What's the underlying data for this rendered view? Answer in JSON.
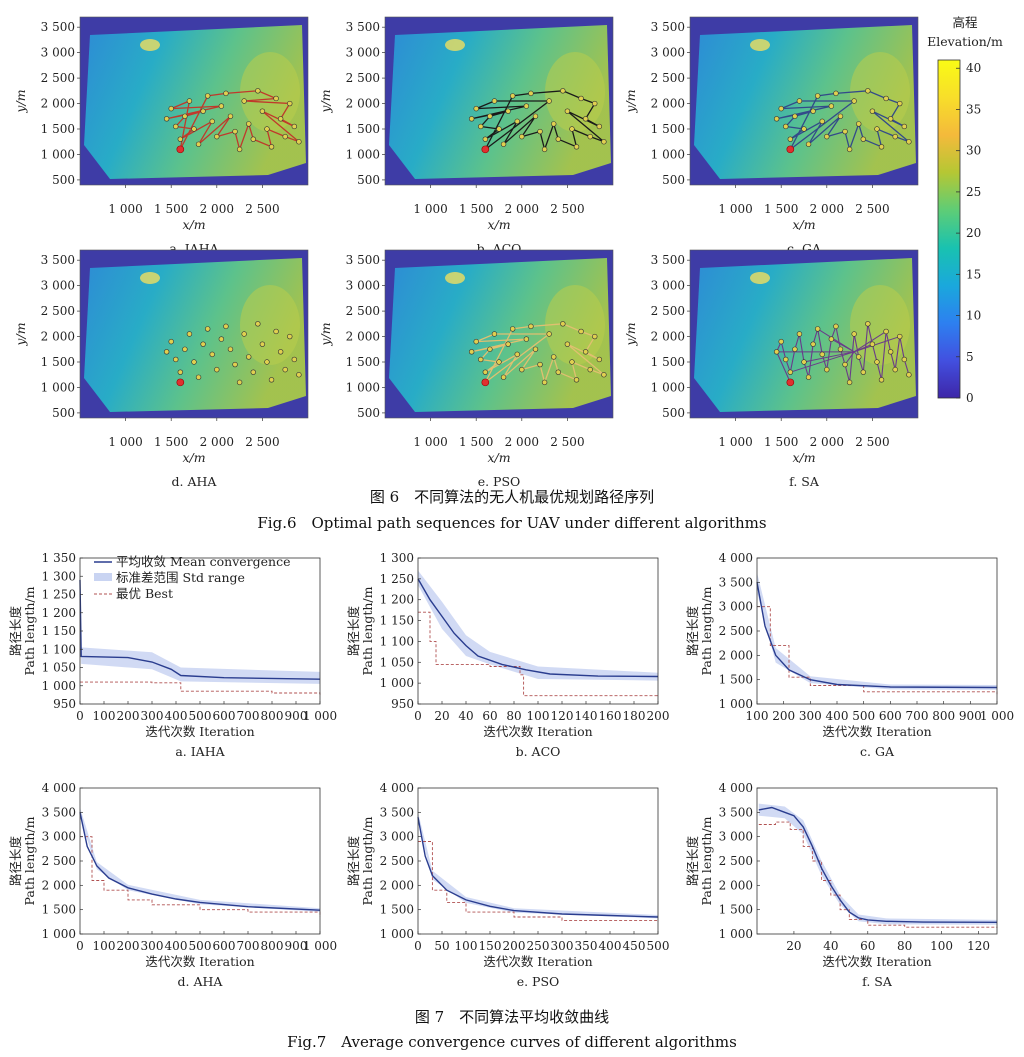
{
  "colorbar": {
    "title": "高程",
    "subtitle": "Elevation/m",
    "ticks": [
      0,
      5,
      10,
      15,
      20,
      25,
      30,
      35,
      40
    ],
    "min": 0,
    "max": 41,
    "colors": [
      "#3e26a8",
      "#4250e0",
      "#2d80f0",
      "#1aa8dc",
      "#19c2b0",
      "#5ecd76",
      "#b5c734",
      "#f4ba3b",
      "#f8de2a",
      "#f9fb15"
    ]
  },
  "fig6": {
    "caption_cn": "图 6　不同算法的无人机最优规划路径序列",
    "caption_en": "Fig.6　Optimal path sequences for UAV under different algorithms",
    "x_ticks": [
      "1 000",
      "1 500",
      "2 000",
      "2 500"
    ],
    "x_tick_values": [
      1000,
      1500,
      2000,
      2500
    ],
    "y_ticks": [
      "3 500",
      "3 000",
      "2 500",
      "2 000",
      "1 500",
      "1 000",
      "500"
    ],
    "y_tick_values": [
      3500,
      3000,
      2500,
      2000,
      1500,
      1000,
      500
    ],
    "xlim": [
      500,
      3000
    ],
    "ylim": [
      400,
      3700
    ],
    "xlabel": "x/m",
    "ylabel": "y/m",
    "start_point": [
      1600,
      1100
    ],
    "panels": [
      {
        "label": "a. IAHA",
        "path_color": "#c0392b",
        "style": "tour"
      },
      {
        "label": "b. ACO",
        "path_color": "#1a1a1a",
        "style": "tour"
      },
      {
        "label": "c. GA",
        "path_color": "#334a8a",
        "style": "tour"
      },
      {
        "label": "d. AHA",
        "path_color": "#d6d04a",
        "style": "points"
      },
      {
        "label": "e. PSO",
        "path_color": "#e0c070",
        "style": "tour"
      },
      {
        "label": "f. SA",
        "path_color": "#6a3a8a",
        "style": "star"
      }
    ],
    "waypoints": [
      [
        1450,
        1700
      ],
      [
        1500,
        1900
      ],
      [
        1550,
        1550
      ],
      [
        1600,
        1300
      ],
      [
        1650,
        1750
      ],
      [
        1700,
        2050
      ],
      [
        1750,
        1500
      ],
      [
        1800,
        1200
      ],
      [
        1850,
        1850
      ],
      [
        1900,
        2150
      ],
      [
        1950,
        1650
      ],
      [
        2000,
        1350
      ],
      [
        2050,
        1950
      ],
      [
        2100,
        2200
      ],
      [
        2150,
        1750
      ],
      [
        2200,
        1450
      ],
      [
        2250,
        1100
      ],
      [
        2300,
        2050
      ],
      [
        2350,
        1600
      ],
      [
        2400,
        1300
      ],
      [
        2450,
        2250
      ],
      [
        2500,
        1850
      ],
      [
        2550,
        1500
      ],
      [
        2600,
        1150
      ],
      [
        2650,
        2100
      ],
      [
        2700,
        1700
      ],
      [
        2750,
        1350
      ],
      [
        2800,
        2000
      ],
      [
        2850,
        1550
      ],
      [
        2900,
        1250
      ]
    ]
  },
  "fig7": {
    "caption_cn": "图 7　不同算法平均收敛曲线",
    "caption_en": "Fig.7　Average convergence curves of different algorithms",
    "xlabel": "迭代次数 Iteration",
    "ylabel_cn": "路径长度",
    "ylabel_en": "Path length/m",
    "legend": {
      "mean": "平均收敛 Mean convergence",
      "std": "标准差范围 Std range",
      "best": "最优 Best"
    },
    "colors": {
      "mean": "#2a3d8f",
      "std": "#c9d4f2",
      "best": "#b05050"
    }
  },
  "chart_data": [
    {
      "type": "line",
      "title": "a. IAHA",
      "xlim": [
        0,
        1000
      ],
      "ylim": [
        950,
        1350
      ],
      "x_ticks": [
        0,
        100,
        200,
        300,
        400,
        500,
        600,
        700,
        800,
        900,
        1000
      ],
      "x_tick_labels": [
        "0",
        "100",
        "200",
        "300",
        "400",
        "500",
        "600",
        "700",
        "800",
        "900",
        "1 000"
      ],
      "y_ticks": [
        950,
        1000,
        1050,
        1100,
        1150,
        1200,
        1250,
        1300,
        1350
      ],
      "y_tick_labels": [
        "950",
        "1 000",
        "1 050",
        "1 100",
        "1 150",
        "1 200",
        "1 250",
        "1 300",
        "1 350"
      ],
      "mean": [
        [
          0,
          1290
        ],
        [
          5,
          1080
        ],
        [
          200,
          1077
        ],
        [
          300,
          1065
        ],
        [
          380,
          1045
        ],
        [
          420,
          1028
        ],
        [
          600,
          1022
        ],
        [
          1000,
          1018
        ]
      ],
      "std": [
        [
          0,
          1250,
          1330
        ],
        [
          5,
          1060,
          1105
        ],
        [
          300,
          1045,
          1092
        ],
        [
          420,
          1012,
          1050
        ],
        [
          1000,
          1005,
          1038
        ]
      ],
      "best": [
        [
          0,
          1010
        ],
        [
          300,
          1008
        ],
        [
          420,
          985
        ],
        [
          800,
          980
        ],
        [
          1000,
          975
        ]
      ]
    },
    {
      "type": "line",
      "title": "b. ACO",
      "xlim": [
        0,
        200
      ],
      "ylim": [
        950,
        1300
      ],
      "x_ticks": [
        0,
        20,
        40,
        60,
        80,
        100,
        120,
        140,
        160,
        180,
        200
      ],
      "x_tick_labels": [
        "0",
        "20",
        "40",
        "60",
        "80",
        "100",
        "120",
        "140",
        "160",
        "180",
        "200"
      ],
      "y_ticks": [
        950,
        1000,
        1050,
        1100,
        1150,
        1200,
        1250,
        1300
      ],
      "y_tick_labels": [
        "950",
        "1 000",
        "1 050",
        "1 100",
        "1 150",
        "1 200",
        "1 250",
        "1 300"
      ],
      "mean": [
        [
          0,
          1250
        ],
        [
          10,
          1200
        ],
        [
          20,
          1160
        ],
        [
          30,
          1120
        ],
        [
          40,
          1090
        ],
        [
          50,
          1065
        ],
        [
          70,
          1045
        ],
        [
          90,
          1032
        ],
        [
          110,
          1022
        ],
        [
          150,
          1017
        ],
        [
          200,
          1016
        ]
      ],
      "std": [
        [
          0,
          1235,
          1270
        ],
        [
          20,
          1130,
          1195
        ],
        [
          40,
          1065,
          1115
        ],
        [
          60,
          1045,
          1075
        ],
        [
          100,
          1010,
          1040
        ],
        [
          200,
          1006,
          1025
        ]
      ],
      "best": [
        [
          0,
          1170
        ],
        [
          10,
          1100
        ],
        [
          15,
          1045
        ],
        [
          60,
          1040
        ],
        [
          85,
          1020
        ],
        [
          88,
          970
        ],
        [
          200,
          970
        ]
      ]
    },
    {
      "type": "line",
      "title": "c. GA",
      "xlim": [
        100,
        1000
      ],
      "ylim": [
        1000,
        4000
      ],
      "x_ticks": [
        100,
        200,
        300,
        400,
        500,
        600,
        700,
        800,
        900,
        1000
      ],
      "x_tick_labels": [
        "100",
        "200",
        "300",
        "400",
        "500",
        "600",
        "700",
        "800",
        "900",
        "1 000"
      ],
      "y_ticks": [
        1000,
        1500,
        2000,
        2500,
        3000,
        3500,
        4000
      ],
      "y_tick_labels": [
        "1 000",
        "1 500",
        "2 000",
        "2 500",
        "3 000",
        "3 500",
        "4 000"
      ],
      "mean": [
        [
          100,
          3500
        ],
        [
          130,
          2600
        ],
        [
          170,
          2000
        ],
        [
          220,
          1700
        ],
        [
          300,
          1500
        ],
        [
          400,
          1400
        ],
        [
          600,
          1350
        ],
        [
          1000,
          1340
        ]
      ],
      "std": [
        [
          100,
          3300,
          3700
        ],
        [
          170,
          1850,
          2150
        ],
        [
          300,
          1430,
          1570
        ],
        [
          600,
          1300,
          1400
        ],
        [
          1000,
          1290,
          1390
        ]
      ],
      "best": [
        [
          100,
          3000
        ],
        [
          150,
          2200
        ],
        [
          220,
          1550
        ],
        [
          300,
          1380
        ],
        [
          500,
          1250
        ],
        [
          1000,
          1200
        ]
      ]
    },
    {
      "type": "line",
      "title": "d. AHA",
      "xlim": [
        0,
        1000
      ],
      "ylim": [
        1000,
        4000
      ],
      "x_ticks": [
        0,
        100,
        200,
        300,
        400,
        500,
        600,
        700,
        800,
        900,
        1000
      ],
      "x_tick_labels": [
        "0",
        "100",
        "200",
        "300",
        "400",
        "500",
        "600",
        "700",
        "800",
        "900",
        "1 000"
      ],
      "y_ticks": [
        1000,
        1500,
        2000,
        2500,
        3000,
        3500,
        4000
      ],
      "y_tick_labels": [
        "1 000",
        "1 500",
        "2 000",
        "2 500",
        "3 000",
        "3 500",
        "4 000"
      ],
      "mean": [
        [
          0,
          3500
        ],
        [
          30,
          2800
        ],
        [
          70,
          2400
        ],
        [
          120,
          2150
        ],
        [
          200,
          1950
        ],
        [
          300,
          1820
        ],
        [
          400,
          1720
        ],
        [
          500,
          1650
        ],
        [
          700,
          1560
        ],
        [
          1000,
          1490
        ]
      ],
      "std": [
        [
          0,
          3400,
          3600
        ],
        [
          70,
          2330,
          2480
        ],
        [
          200,
          1900,
          2010
        ],
        [
          500,
          1610,
          1700
        ],
        [
          1000,
          1455,
          1530
        ]
      ],
      "best": [
        [
          0,
          3000
        ],
        [
          50,
          2100
        ],
        [
          100,
          1900
        ],
        [
          200,
          1700
        ],
        [
          300,
          1600
        ],
        [
          500,
          1500
        ],
        [
          700,
          1450
        ],
        [
          1000,
          1350
        ]
      ]
    },
    {
      "type": "line",
      "title": "e. PSO",
      "xlim": [
        0,
        500
      ],
      "ylim": [
        1000,
        4000
      ],
      "x_ticks": [
        0,
        50,
        100,
        150,
        200,
        250,
        300,
        350,
        400,
        450,
        500
      ],
      "x_tick_labels": [
        "0",
        "50",
        "100",
        "150",
        "200",
        "250",
        "300",
        "350",
        "400",
        "450",
        "500"
      ],
      "y_ticks": [
        1000,
        1500,
        2000,
        2500,
        3000,
        3500,
        4000
      ],
      "y_tick_labels": [
        "1 000",
        "1 500",
        "2 000",
        "2 500",
        "3 000",
        "3 500",
        "4 000"
      ],
      "mean": [
        [
          0,
          3400
        ],
        [
          15,
          2600
        ],
        [
          30,
          2200
        ],
        [
          60,
          1900
        ],
        [
          100,
          1700
        ],
        [
          150,
          1570
        ],
        [
          200,
          1480
        ],
        [
          300,
          1410
        ],
        [
          400,
          1380
        ],
        [
          500,
          1350
        ]
      ],
      "std": [
        [
          0,
          3300,
          3500
        ],
        [
          30,
          2120,
          2300
        ],
        [
          100,
          1640,
          1760
        ],
        [
          200,
          1440,
          1530
        ],
        [
          500,
          1320,
          1390
        ]
      ],
      "best": [
        [
          0,
          2900
        ],
        [
          30,
          1900
        ],
        [
          60,
          1650
        ],
        [
          100,
          1450
        ],
        [
          200,
          1350
        ],
        [
          300,
          1280
        ],
        [
          500,
          1250
        ]
      ]
    },
    {
      "type": "line",
      "title": "f. SA",
      "xlim": [
        0,
        130
      ],
      "ylim": [
        1000,
        4000
      ],
      "x_ticks": [
        20,
        40,
        60,
        80,
        100,
        120
      ],
      "x_tick_labels": [
        "20",
        "40",
        "60",
        "80",
        "100",
        "120"
      ],
      "y_ticks": [
        1000,
        1500,
        2000,
        2500,
        3000,
        3500,
        4000
      ],
      "y_tick_labels": [
        "1 000",
        "1 500",
        "2 000",
        "2 500",
        "3 000",
        "3 500",
        "4 000"
      ],
      "mean": [
        [
          1,
          3550
        ],
        [
          8,
          3600
        ],
        [
          15,
          3500
        ],
        [
          20,
          3430
        ],
        [
          25,
          3200
        ],
        [
          30,
          2800
        ],
        [
          35,
          2350
        ],
        [
          40,
          2000
        ],
        [
          45,
          1700
        ],
        [
          50,
          1450
        ],
        [
          55,
          1330
        ],
        [
          60,
          1290
        ],
        [
          70,
          1260
        ],
        [
          90,
          1245
        ],
        [
          130,
          1240
        ]
      ],
      "std": [
        [
          1,
          3430,
          3680
        ],
        [
          15,
          3380,
          3620
        ],
        [
          25,
          3050,
          3340
        ],
        [
          35,
          2200,
          2500
        ],
        [
          45,
          1600,
          1800
        ],
        [
          55,
          1260,
          1400
        ],
        [
          70,
          1200,
          1320
        ],
        [
          130,
          1190,
          1290
        ]
      ],
      "best": [
        [
          1,
          3250
        ],
        [
          10,
          3300
        ],
        [
          18,
          3150
        ],
        [
          25,
          2800
        ],
        [
          30,
          2500
        ],
        [
          35,
          2100
        ],
        [
          40,
          1800
        ],
        [
          45,
          1500
        ],
        [
          50,
          1300
        ],
        [
          60,
          1180
        ],
        [
          80,
          1140
        ],
        [
          130,
          1130
        ]
      ]
    }
  ]
}
